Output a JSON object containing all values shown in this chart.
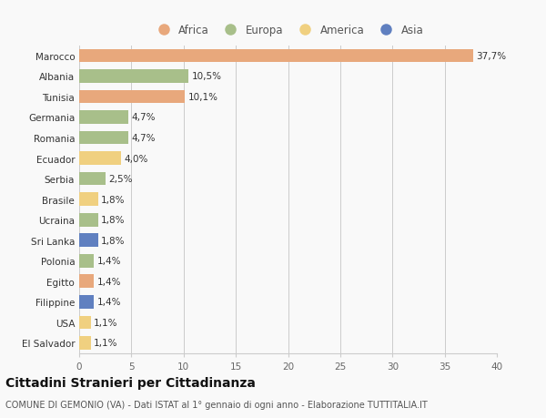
{
  "countries": [
    "El Salvador",
    "USA",
    "Filippine",
    "Egitto",
    "Polonia",
    "Sri Lanka",
    "Ucraina",
    "Brasile",
    "Serbia",
    "Ecuador",
    "Romania",
    "Germania",
    "Tunisia",
    "Albania",
    "Marocco"
  ],
  "values": [
    1.1,
    1.1,
    1.4,
    1.4,
    1.4,
    1.8,
    1.8,
    1.8,
    2.5,
    4.0,
    4.7,
    4.7,
    10.1,
    10.5,
    37.7
  ],
  "labels": [
    "1,1%",
    "1,1%",
    "1,4%",
    "1,4%",
    "1,4%",
    "1,8%",
    "1,8%",
    "1,8%",
    "2,5%",
    "4,0%",
    "4,7%",
    "4,7%",
    "10,1%",
    "10,5%",
    "37,7%"
  ],
  "continents": [
    "America",
    "America",
    "Asia",
    "Africa",
    "Europa",
    "Asia",
    "Europa",
    "America",
    "Europa",
    "America",
    "Europa",
    "Europa",
    "Africa",
    "Europa",
    "Africa"
  ],
  "continent_colors": {
    "Africa": "#E8A87C",
    "Europa": "#A8BF8A",
    "America": "#F0D080",
    "Asia": "#6080C0"
  },
  "legend_order": [
    "Africa",
    "Europa",
    "America",
    "Asia"
  ],
  "legend_colors": {
    "Africa": "#E8A87C",
    "Europa": "#A8BF8A",
    "America": "#F0D080",
    "Asia": "#6080C0"
  },
  "title": "Cittadini Stranieri per Cittadinanza",
  "subtitle": "COMUNE DI GEMONIO (VA) - Dati ISTAT al 1° gennaio di ogni anno - Elaborazione TUTTITALIA.IT",
  "xlim": [
    0,
    40
  ],
  "xticks": [
    0,
    5,
    10,
    15,
    20,
    25,
    30,
    35,
    40
  ],
  "background_color": "#f9f9f9",
  "grid_color": "#cccccc",
  "bar_height": 0.65,
  "label_fontsize": 7.5,
  "tick_fontsize": 7.5,
  "title_fontsize": 10,
  "subtitle_fontsize": 7
}
